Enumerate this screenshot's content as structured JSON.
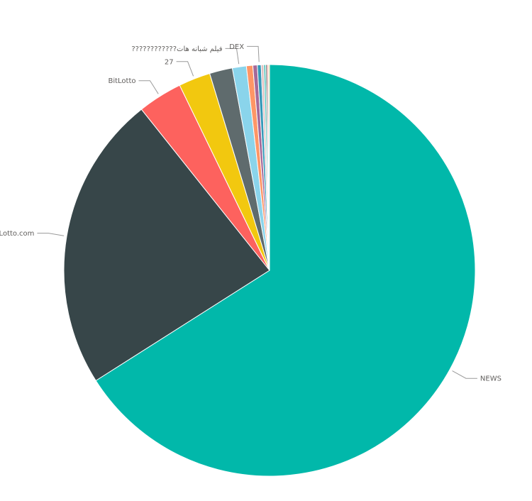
{
  "chart_data": {
    "type": "pie",
    "title": "",
    "slices": [
      {
        "label": "NEWS",
        "value": 66.0,
        "color": "#01b8aa"
      },
      {
        "label": "BitLotto.com",
        "value": 23.3,
        "color": "#374649"
      },
      {
        "label": "BitLotto",
        "value": 3.5,
        "color": "#fd625e"
      },
      {
        "label": "27",
        "value": 2.5,
        "color": "#f2c80f"
      },
      {
        "label": "",
        "value": 1.8,
        "color": "#5f6b6d"
      },
      {
        "label": "????????????فیلم شبانه هات",
        "value": 1.1,
        "color": "#8ad4eb"
      },
      {
        "label": "",
        "value": 0.5,
        "color": "#fe9666"
      },
      {
        "label": "",
        "value": 0.35,
        "color": "#a66999"
      },
      {
        "label": "DEX",
        "value": 0.3,
        "color": "#3599b8"
      },
      {
        "label": "",
        "value": 0.2,
        "color": "#dfbfbf"
      },
      {
        "label": "",
        "value": 0.15,
        "color": "#4ac5bb"
      },
      {
        "label": "",
        "value": 0.12,
        "color": "#5f6b6d"
      },
      {
        "label": "",
        "value": 0.1,
        "color": "#fb8281"
      },
      {
        "label": "",
        "value": 0.08,
        "color": "#f4d25a"
      }
    ],
    "legend": "none",
    "label_style": "outside with leader lines"
  }
}
